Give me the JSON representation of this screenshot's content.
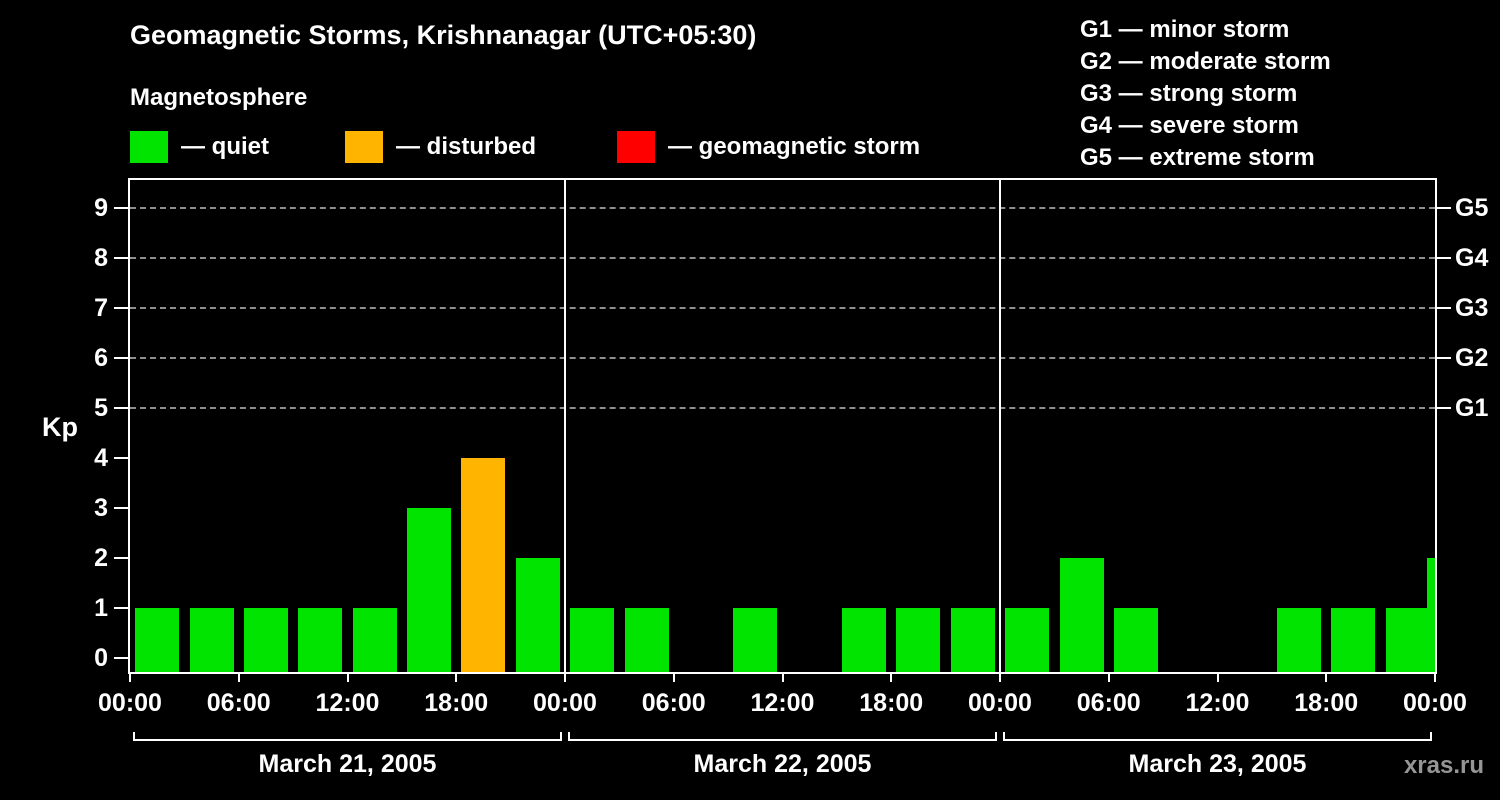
{
  "title": "Geomagnetic Storms, Krishnanagar (UTC+05:30)",
  "subtitle": "Magnetosphere",
  "kp_legend": [
    {
      "label": "— quiet",
      "color": "#00e400"
    },
    {
      "label": "— disturbed",
      "color": "#ffb400"
    },
    {
      "label": "— geomagnetic storm",
      "color": "#ff0000"
    }
  ],
  "g_legend": [
    "G1 — minor storm",
    "G2 — moderate storm",
    "G3 — strong storm",
    "G4 — severe storm",
    "G5 — extreme storm"
  ],
  "watermark": "xras.ru",
  "chart_data": {
    "type": "bar",
    "title": "Geomagnetic Storms, Krishnanagar (UTC+05:30)",
    "ylabel": "Kp",
    "ylim": [
      0,
      9
    ],
    "y_ticks": [
      0,
      1,
      2,
      3,
      4,
      5,
      6,
      7,
      8,
      9
    ],
    "right_axis_labels": [
      {
        "kp": 5,
        "label": "G1"
      },
      {
        "kp": 6,
        "label": "G2"
      },
      {
        "kp": 7,
        "label": "G3"
      },
      {
        "kp": 8,
        "label": "G4"
      },
      {
        "kp": 9,
        "label": "G5"
      }
    ],
    "grid_levels": [
      5,
      6,
      7,
      8,
      9
    ],
    "x_tick_labels": [
      "00:00",
      "06:00",
      "12:00",
      "18:00",
      "00:00",
      "06:00",
      "12:00",
      "18:00",
      "00:00",
      "06:00",
      "12:00",
      "18:00",
      "00:00"
    ],
    "interval_hours": 3,
    "days": [
      {
        "date": "March 21, 2005",
        "kp_values": [
          1,
          1,
          1,
          1,
          1,
          3,
          4,
          2
        ]
      },
      {
        "date": "March 22, 2005",
        "kp_values": [
          1,
          1,
          0,
          1,
          0,
          1,
          1,
          1
        ]
      },
      {
        "date": "March 23, 2005",
        "kp_values": [
          1,
          2,
          1,
          0,
          0,
          1,
          1,
          1
        ]
      }
    ],
    "partial_next_bar": {
      "kp": 2
    },
    "colors": {
      "quiet": "#00e400",
      "disturbed": "#ffb400",
      "storm": "#ff0000"
    },
    "color_rule": "kp<4 quiet, kp=4 disturbed, kp>=5 storm",
    "legend_position": "top",
    "grid": "dashed horizontal at G-levels only"
  }
}
